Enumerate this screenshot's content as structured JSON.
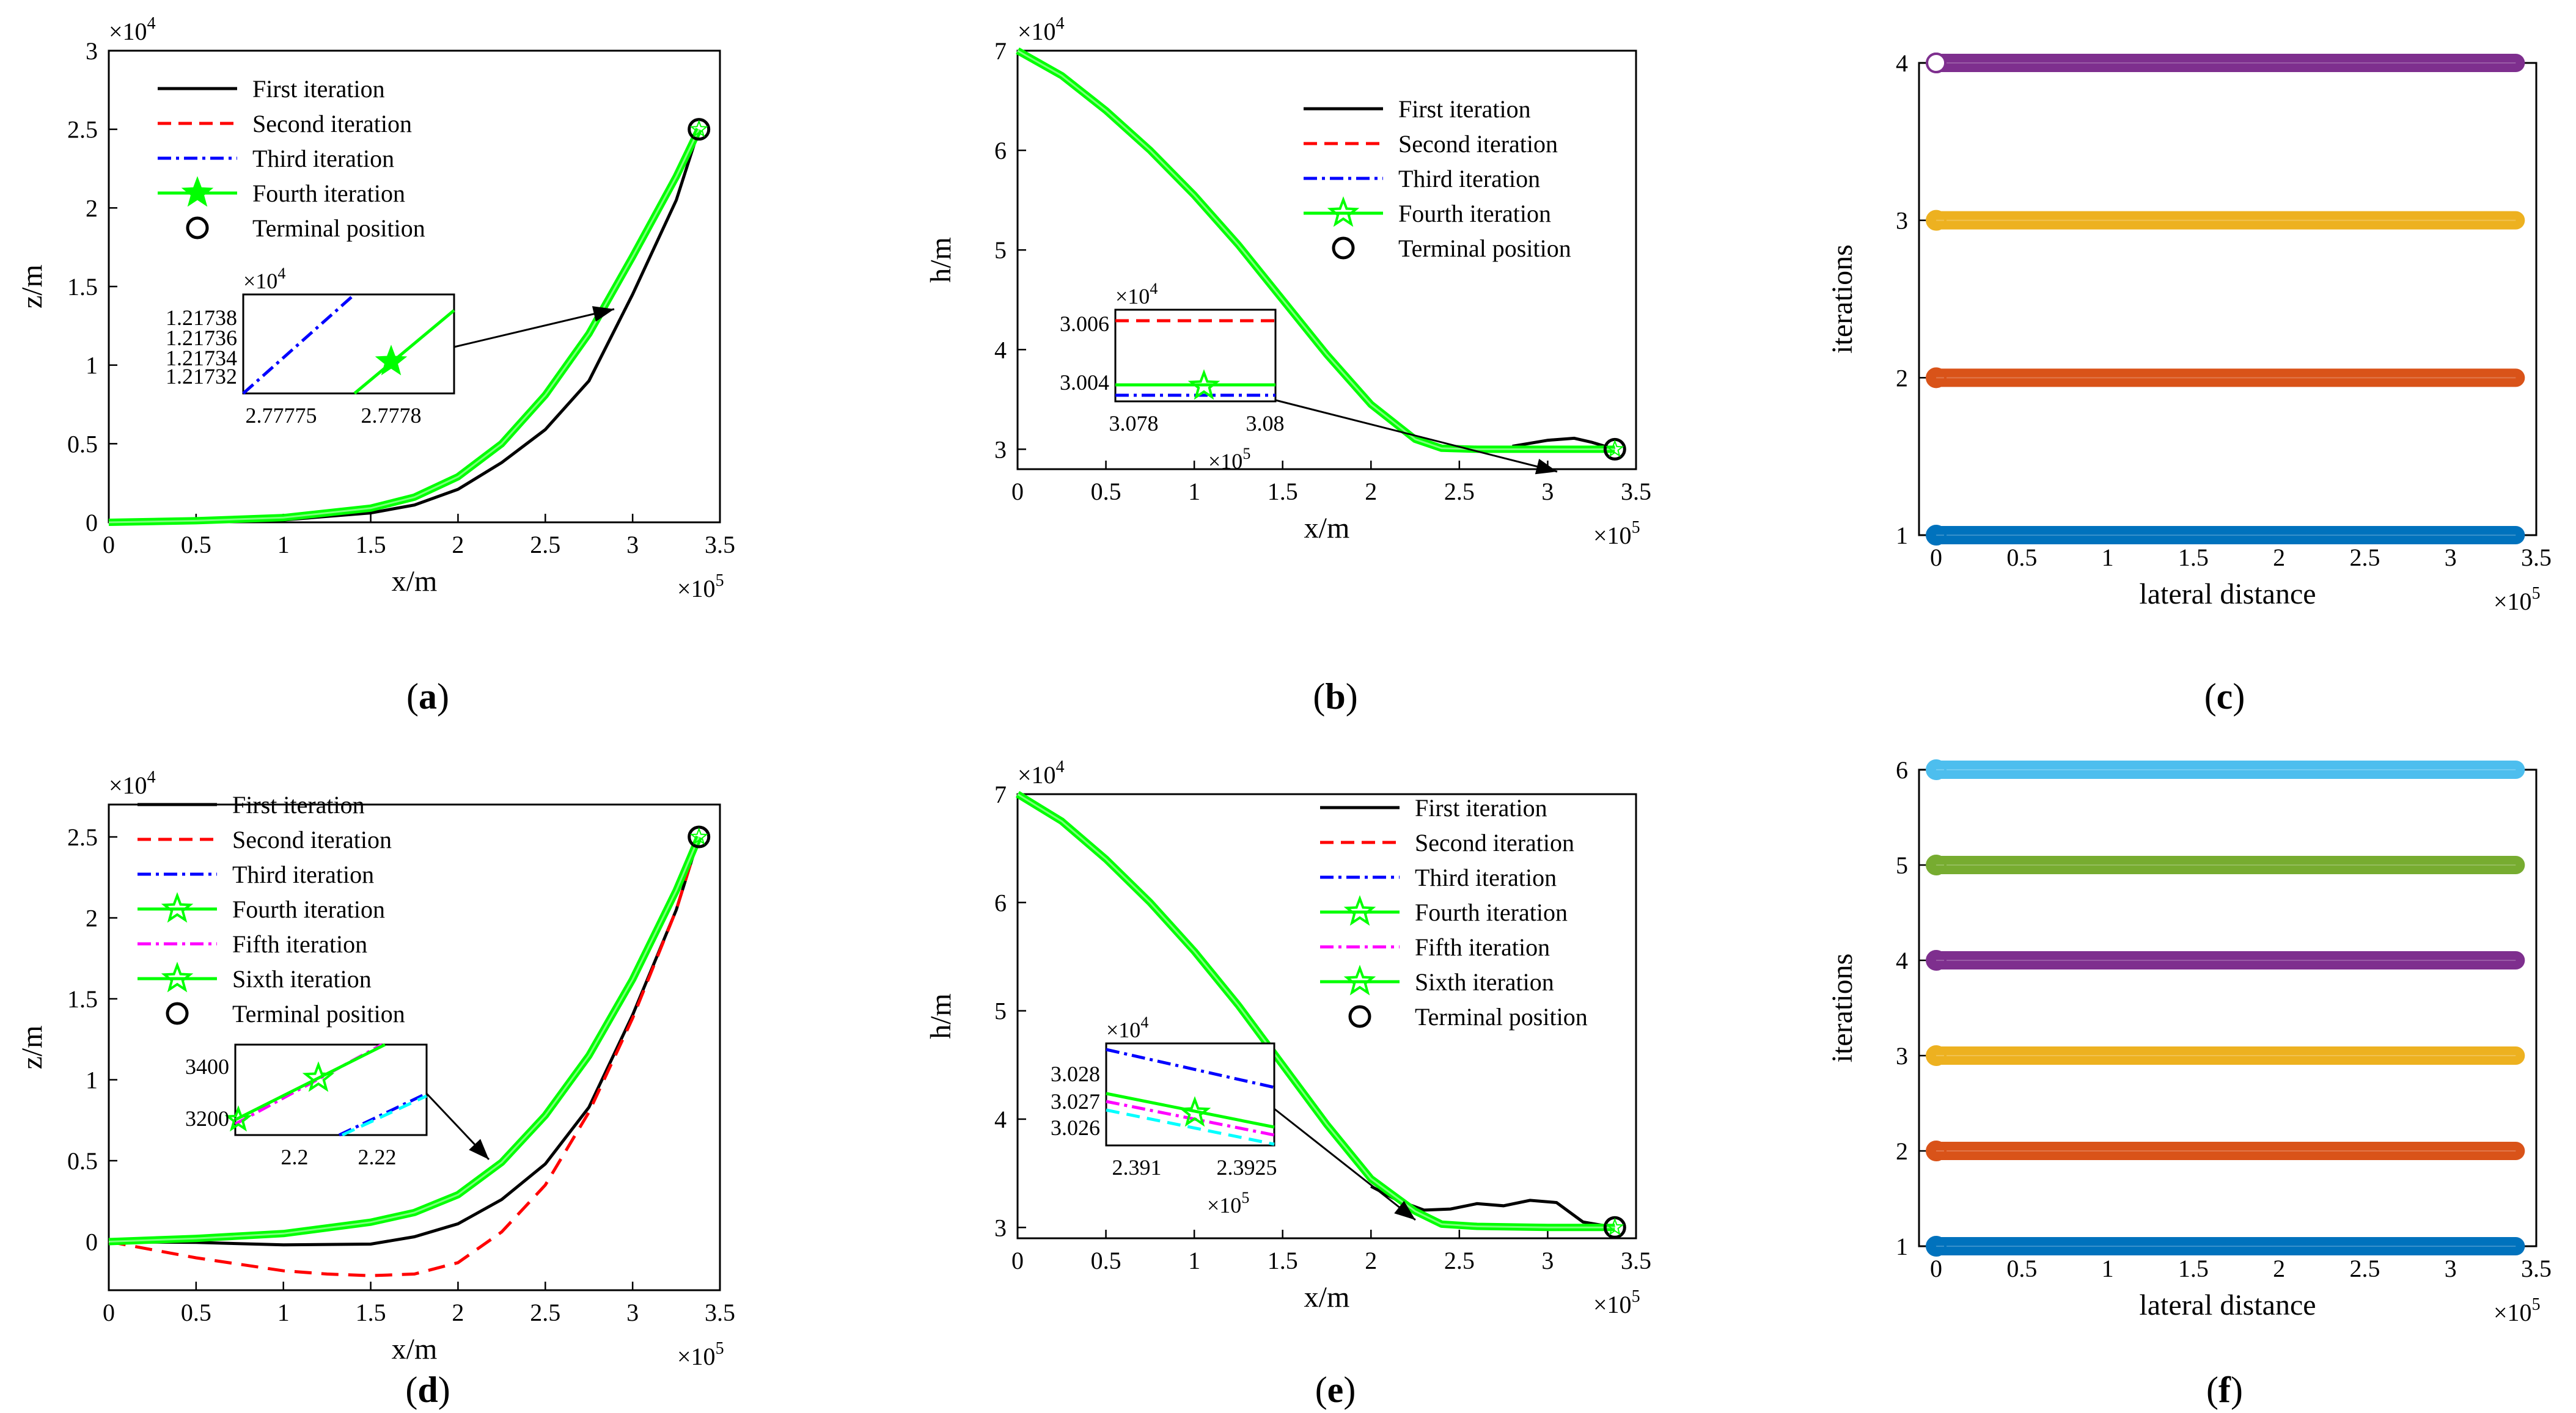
{
  "figure": {
    "panels": [
      {
        "id": "a",
        "label": "(a)",
        "label_letter": "a",
        "type": "line",
        "xlabel": "x/m",
        "ylabel": "z/m",
        "x_exp": "×10",
        "x_exp_sup": "5",
        "y_exp": "×10",
        "y_exp_sup": "4"
      },
      {
        "id": "b",
        "label": "(b)",
        "label_letter": "b",
        "type": "line",
        "xlabel": "x/m",
        "ylabel": "h/m",
        "x_exp": "×10",
        "x_exp_sup": "5",
        "y_exp": "×10",
        "y_exp_sup": "4"
      },
      {
        "id": "c",
        "label": "(c)",
        "label_letter": "c",
        "type": "scatter",
        "xlabel": "lateral distance",
        "ylabel": "iterations",
        "x_exp": "×10",
        "x_exp_sup": "5"
      },
      {
        "id": "d",
        "label": "(d)",
        "label_letter": "d",
        "type": "line",
        "xlabel": "x/m",
        "ylabel": "z/m",
        "x_exp": "×10",
        "x_exp_sup": "5",
        "y_exp": "×10",
        "y_exp_sup": "4"
      },
      {
        "id": "e",
        "label": "(e)",
        "label_letter": "e",
        "type": "line",
        "xlabel": "x/m",
        "ylabel": "h/m",
        "x_exp": "×10",
        "x_exp_sup": "5",
        "y_exp": "×10",
        "y_exp_sup": "4"
      },
      {
        "id": "f",
        "label": "(f)",
        "label_letter": "f",
        "type": "scatter",
        "xlabel": "lateral distance",
        "ylabel": "iterations",
        "x_exp": "×10",
        "x_exp_sup": "5"
      }
    ],
    "colors": {
      "first": "#000000",
      "second": "#ff0000",
      "third": "#0000ff",
      "fourth_cyan": "#00ffff",
      "fifth": "#ff00ff",
      "green": "#00ff00",
      "it1": "#0072bd",
      "it2": "#d95319",
      "it3": "#edb120",
      "it4": "#7e2f8e",
      "it5": "#77ac30",
      "it6": "#4dbeee"
    }
  },
  "chart_data": [
    {
      "panel": "a",
      "type": "line",
      "title": "",
      "xlabel": "x/m",
      "ylabel": "z/m",
      "xlim": [
        0,
        350000
      ],
      "ylim": [
        0,
        30000
      ],
      "xticks": [
        0,
        50000,
        100000,
        150000,
        200000,
        250000,
        300000,
        350000
      ],
      "xtick_labels": [
        "0",
        "0.5",
        "1",
        "1.5",
        "2",
        "2.5",
        "3",
        "3.5"
      ],
      "yticks": [
        0,
        5000,
        10000,
        15000,
        20000,
        25000,
        30000
      ],
      "ytick_labels": [
        "0",
        "0.5",
        "1",
        "1.5",
        "2",
        "2.5",
        "3"
      ],
      "legend": [
        "First iteration",
        "Second iteration",
        "Third iteration",
        "Fourth iteration",
        "Terminal position"
      ],
      "series": [
        {
          "name": "First iteration",
          "style": "solid",
          "x": [
            0,
            50000,
            100000,
            150000,
            175000,
            200000,
            225000,
            250000,
            275000,
            300000,
            325000,
            338000
          ],
          "y": [
            0,
            50,
            150,
            600,
            1100,
            2100,
            3800,
            5900,
            9000,
            14500,
            20500,
            25000
          ]
        },
        {
          "name": "Fourth iteration",
          "style": "green-star",
          "x": [
            0,
            50000,
            100000,
            150000,
            175000,
            200000,
            225000,
            250000,
            275000,
            300000,
            325000,
            338000
          ],
          "y": [
            0,
            100,
            300,
            900,
            1600,
            2900,
            5000,
            8100,
            12000,
            16900,
            22000,
            25000
          ]
        }
      ],
      "terminal": {
        "x": 338000,
        "y": 25000
      },
      "inset": {
        "xtick_labels": [
          "2.77775",
          "2.7778"
        ],
        "ytick_labels": [
          "1.21738",
          "1.21736",
          "1.21734",
          "1.21732"
        ],
        "y_exp": "×10",
        "y_exp_sup": "4"
      }
    },
    {
      "panel": "b",
      "type": "line",
      "title": "",
      "xlabel": "x/m",
      "ylabel": "h/m",
      "xlim": [
        0,
        350000
      ],
      "ylim": [
        28000,
        70000
      ],
      "xticks": [
        0,
        50000,
        100000,
        150000,
        200000,
        250000,
        300000,
        350000
      ],
      "xtick_labels": [
        "0",
        "0.5",
        "1",
        "1.5",
        "2",
        "2.5",
        "3",
        "3.5"
      ],
      "yticks": [
        30000,
        40000,
        50000,
        60000,
        70000
      ],
      "ytick_labels": [
        "3",
        "4",
        "5",
        "6",
        "7"
      ],
      "legend": [
        "First iteration",
        "Second iteration",
        "Third iteration",
        "Fourth iteration",
        "Terminal position"
      ],
      "series": [
        {
          "name": "First iteration",
          "style": "solid",
          "x": [
            280000,
            300000,
            315000,
            325000,
            338000
          ],
          "y": [
            30300,
            30900,
            31100,
            30700,
            30000
          ]
        },
        {
          "name": "Fourth iteration",
          "style": "green-star",
          "x": [
            0,
            25000,
            50000,
            75000,
            100000,
            125000,
            150000,
            175000,
            200000,
            225000,
            240000,
            260000,
            300000,
            338000
          ],
          "y": [
            70000,
            67500,
            64000,
            60000,
            55500,
            50500,
            45000,
            39500,
            34500,
            31000,
            30100,
            30000,
            30000,
            30000
          ]
        }
      ],
      "terminal": {
        "x": 338000,
        "y": 30000
      },
      "inset": {
        "xtick_labels": [
          "3.078",
          "3.08"
        ],
        "ytick_labels": [
          "3.006",
          "3.004"
        ],
        "y_exp": "×10",
        "y_exp_sup": "4",
        "x_exp": "×10",
        "x_exp_sup": "5"
      }
    },
    {
      "panel": "c",
      "type": "scatter",
      "title": "",
      "xlabel": "lateral distance",
      "ylabel": "iterations",
      "xlim": [
        -10000,
        350000
      ],
      "ylim": [
        1,
        4
      ],
      "xticks": [
        0,
        50000,
        100000,
        150000,
        200000,
        250000,
        300000,
        350000
      ],
      "xtick_labels": [
        "0",
        "0.5",
        "1",
        "1.5",
        "2",
        "2.5",
        "3",
        "3.5"
      ],
      "yticks": [
        1,
        2,
        3,
        4
      ],
      "ytick_labels": [
        "1",
        "2",
        "3",
        "4"
      ],
      "series": [
        {
          "name": "Iteration 1",
          "y": 1,
          "x_range": [
            0,
            338000
          ]
        },
        {
          "name": "Iteration 2",
          "y": 2,
          "x_range": [
            0,
            338000
          ]
        },
        {
          "name": "Iteration 3",
          "y": 3,
          "x_range": [
            0,
            338000
          ]
        },
        {
          "name": "Iteration 4",
          "y": 4,
          "x_range": [
            0,
            338000
          ]
        }
      ]
    },
    {
      "panel": "d",
      "type": "line",
      "title": "",
      "xlabel": "x/m",
      "ylabel": "z/m",
      "xlim": [
        0,
        350000
      ],
      "ylim": [
        -3000,
        27000
      ],
      "xticks": [
        0,
        50000,
        100000,
        150000,
        200000,
        250000,
        300000,
        350000
      ],
      "xtick_labels": [
        "0",
        "0.5",
        "1",
        "1.5",
        "2",
        "2.5",
        "3",
        "3.5"
      ],
      "yticks": [
        0,
        5000,
        10000,
        15000,
        20000,
        25000
      ],
      "ytick_labels": [
        "0",
        "0.5",
        "1",
        "1.5",
        "2",
        "2.5"
      ],
      "legend": [
        "First iteration",
        "Second iteration",
        "Third iteration",
        "Fourth iteration",
        "Fifth iteration",
        "Sixth iteration",
        "Terminal position"
      ],
      "series": [
        {
          "name": "First iteration",
          "style": "solid",
          "x": [
            0,
            50000,
            100000,
            150000,
            175000,
            200000,
            225000,
            250000,
            275000,
            300000,
            325000,
            338000
          ],
          "y": [
            0,
            -50,
            -200,
            -150,
            300,
            1100,
            2600,
            4800,
            8300,
            14000,
            20500,
            25000
          ]
        },
        {
          "name": "Second iteration",
          "style": "dashed",
          "x": [
            0,
            25000,
            50000,
            75000,
            100000,
            125000,
            150000,
            175000,
            200000,
            225000,
            250000,
            275000,
            300000,
            325000,
            338000
          ],
          "y": [
            0,
            -500,
            -1000,
            -1400,
            -1800,
            -2000,
            -2100,
            -2000,
            -1300,
            600,
            3500,
            8000,
            13800,
            20500,
            25000
          ]
        },
        {
          "name": "Sixth iteration",
          "style": "green-star",
          "x": [
            0,
            50000,
            100000,
            150000,
            175000,
            200000,
            225000,
            250000,
            275000,
            300000,
            325000,
            338000
          ],
          "y": [
            0,
            200,
            500,
            1200,
            1800,
            2900,
            4900,
            7800,
            11500,
            16200,
            21700,
            25000
          ]
        }
      ],
      "terminal": {
        "x": 338000,
        "y": 25000
      },
      "inset": {
        "xtick_labels": [
          "2.2",
          "2.22"
        ],
        "ytick_labels": [
          "3400",
          "3200"
        ]
      }
    },
    {
      "panel": "e",
      "type": "line",
      "title": "",
      "xlabel": "x/m",
      "ylabel": "h/m",
      "xlim": [
        0,
        350000
      ],
      "ylim": [
        29000,
        70000
      ],
      "xticks": [
        0,
        50000,
        100000,
        150000,
        200000,
        250000,
        300000,
        350000
      ],
      "xtick_labels": [
        "0",
        "0.5",
        "1",
        "1.5",
        "2",
        "2.5",
        "3",
        "3.5"
      ],
      "yticks": [
        30000,
        40000,
        50000,
        60000,
        70000
      ],
      "ytick_labels": [
        "3",
        "4",
        "5",
        "6",
        "7"
      ],
      "legend": [
        "First iteration",
        "Second iteration",
        "Third iteration",
        "Fourth iteration",
        "Fifth iteration",
        "Sixth iteration",
        "Terminal position"
      ],
      "series": [
        {
          "name": "First iteration",
          "style": "solid",
          "x": [
            200000,
            215000,
            230000,
            245000,
            260000,
            275000,
            290000,
            305000,
            320000,
            338000
          ],
          "y": [
            33800,
            32500,
            31600,
            31700,
            32200,
            32000,
            32500,
            32300,
            30500,
            30000
          ]
        },
        {
          "name": "Sixth iteration",
          "style": "green-star",
          "x": [
            0,
            25000,
            50000,
            75000,
            100000,
            125000,
            150000,
            175000,
            200000,
            225000,
            240000,
            260000,
            300000,
            338000
          ],
          "y": [
            70000,
            67500,
            64000,
            60000,
            55500,
            50500,
            45000,
            39500,
            34500,
            31500,
            30300,
            30100,
            30000,
            30000
          ]
        }
      ],
      "terminal": {
        "x": 338000,
        "y": 30000
      },
      "inset": {
        "xtick_labels": [
          "2.391",
          "2.3925"
        ],
        "ytick_labels": [
          "3.028",
          "3.027",
          "3.026"
        ],
        "y_exp": "×10",
        "y_exp_sup": "4",
        "x_exp": "×10",
        "x_exp_sup": "5"
      }
    },
    {
      "panel": "f",
      "type": "scatter",
      "title": "",
      "xlabel": "lateral distance",
      "ylabel": "iterations",
      "xlim": [
        -10000,
        350000
      ],
      "ylim": [
        1,
        6
      ],
      "xticks": [
        0,
        50000,
        100000,
        150000,
        200000,
        250000,
        300000,
        350000
      ],
      "xtick_labels": [
        "0",
        "0.5",
        "1",
        "1.5",
        "2",
        "2.5",
        "3",
        "3.5"
      ],
      "yticks": [
        1,
        2,
        3,
        4,
        5,
        6
      ],
      "ytick_labels": [
        "1",
        "2",
        "3",
        "4",
        "5",
        "6"
      ],
      "series": [
        {
          "name": "Iteration 1",
          "y": 1,
          "x_range": [
            0,
            338000
          ]
        },
        {
          "name": "Iteration 2",
          "y": 2,
          "x_range": [
            0,
            338000
          ]
        },
        {
          "name": "Iteration 3",
          "y": 3,
          "x_range": [
            0,
            338000
          ]
        },
        {
          "name": "Iteration 4",
          "y": 4,
          "x_range": [
            0,
            338000
          ]
        },
        {
          "name": "Iteration 5",
          "y": 5,
          "x_range": [
            0,
            338000
          ]
        },
        {
          "name": "Iteration 6",
          "y": 6,
          "x_range": [
            0,
            338000
          ]
        }
      ]
    }
  ]
}
